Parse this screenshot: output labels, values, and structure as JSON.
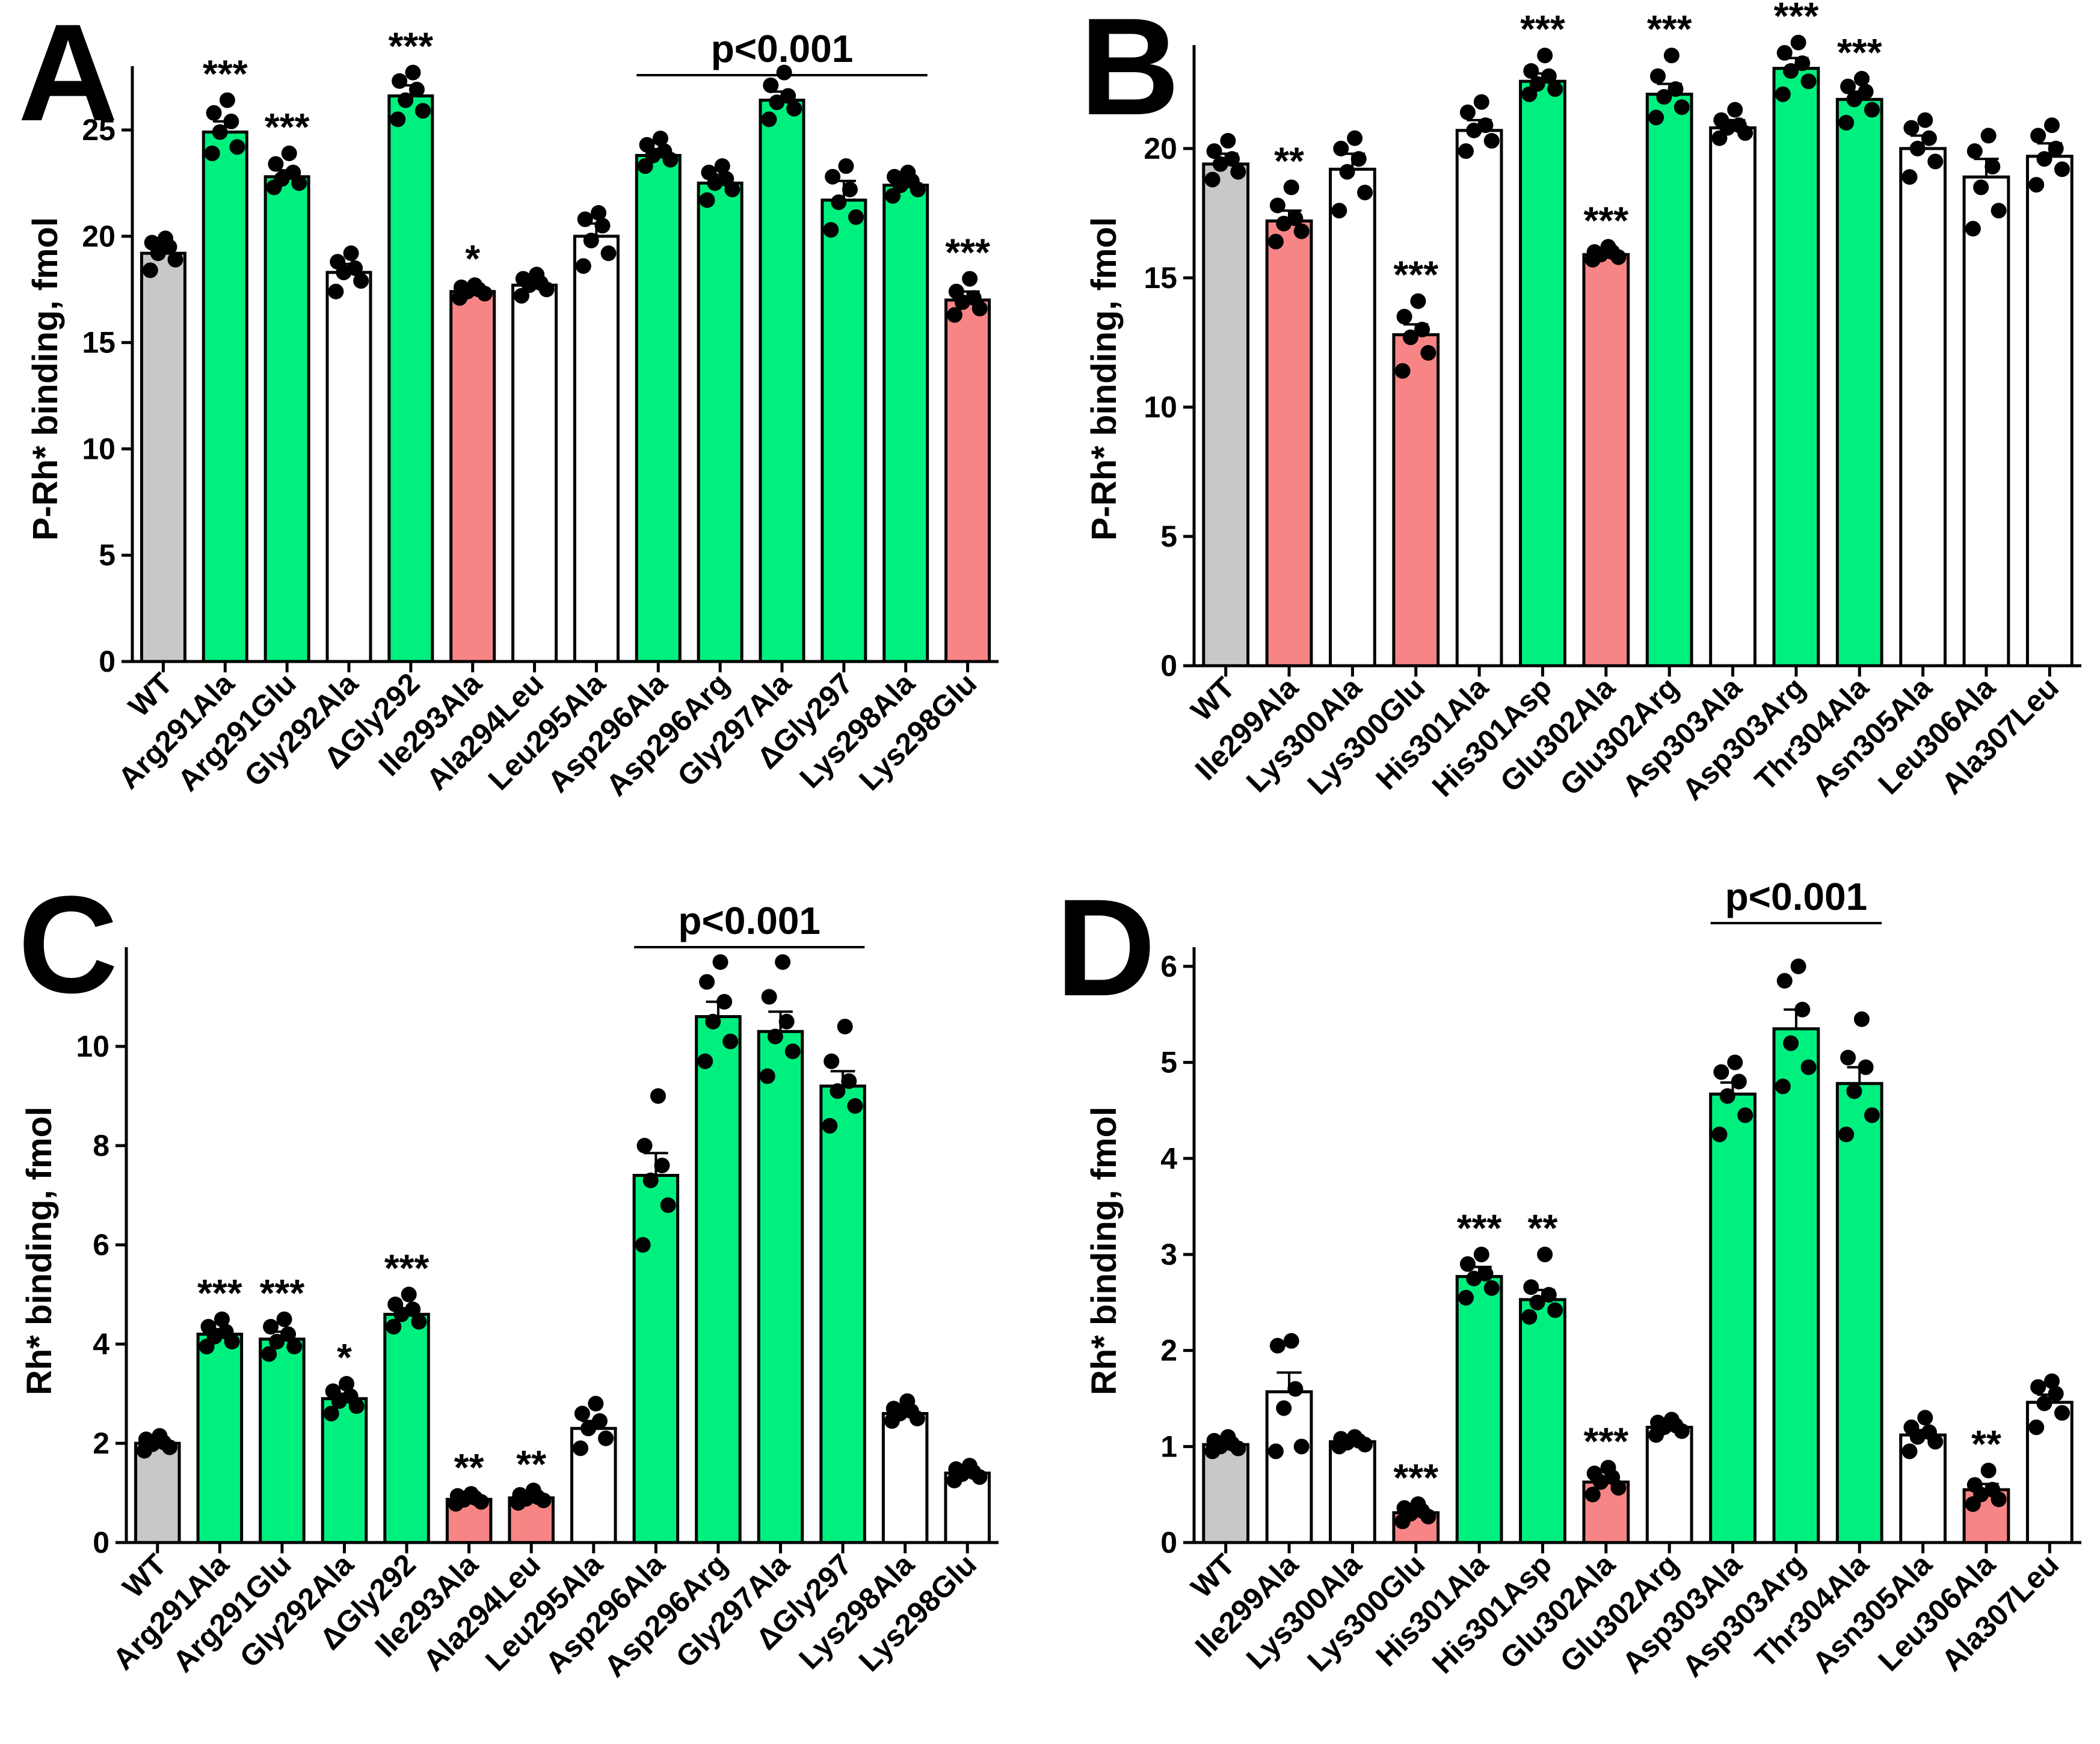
{
  "colors": {
    "wt": "#c8c8c8",
    "increase": "#00f07f",
    "decrease": "#f78585",
    "neutral": "#ffffff",
    "ink": "#000000"
  },
  "chart_data": [
    {
      "panel": "A",
      "type": "bar",
      "ylabel": "P-Rh* binding, fmol",
      "ylim": [
        0,
        28
      ],
      "yticks": [
        0,
        5,
        10,
        15,
        20,
        25
      ],
      "categories": [
        "WT",
        "Arg291Ala",
        "Arg291Glu",
        "Gly292Ala",
        "ΔGly292",
        "Ile293Ala",
        "Ala294Leu",
        "Leu295Ala",
        "Asp296Ala",
        "Asp296Arg",
        "Gly297Ala",
        "ΔGly297",
        "Lys298Ala",
        "Lys298Glu"
      ],
      "values": [
        19.2,
        24.9,
        22.8,
        18.3,
        26.6,
        17.4,
        17.7,
        20.0,
        23.8,
        22.5,
        26.4,
        21.7,
        22.4,
        17.0
      ],
      "sem": [
        0.4,
        0.5,
        0.3,
        0.4,
        0.5,
        0.2,
        0.2,
        0.6,
        0.3,
        0.4,
        0.4,
        0.9,
        0.3,
        0.4
      ],
      "groups": [
        "wt",
        "increase",
        "increase",
        "neutral",
        "increase",
        "decrease",
        "neutral",
        "neutral",
        "increase",
        "increase",
        "increase",
        "increase",
        "increase",
        "decrease"
      ],
      "points": [
        [
          18.4,
          18.9,
          19.2,
          19.5,
          19.7,
          19.9
        ],
        [
          23.9,
          24.2,
          24.9,
          25.4,
          25.8,
          26.4
        ],
        [
          22.3,
          22.5,
          22.7,
          23.0,
          23.4,
          23.9
        ],
        [
          17.4,
          17.9,
          18.3,
          18.5,
          18.8,
          19.2
        ],
        [
          25.5,
          25.9,
          26.4,
          26.9,
          27.3,
          27.7
        ],
        [
          17.1,
          17.3,
          17.4,
          17.5,
          17.6,
          17.7
        ],
        [
          17.2,
          17.5,
          17.7,
          17.8,
          18.0,
          18.2
        ],
        [
          18.6,
          19.2,
          19.8,
          20.5,
          20.8,
          21.1
        ],
        [
          23.3,
          23.6,
          23.8,
          24.0,
          24.3,
          24.6
        ],
        [
          21.7,
          22.2,
          22.5,
          22.7,
          23.0,
          23.3
        ],
        [
          25.5,
          26.0,
          26.3,
          26.6,
          27.1,
          27.7
        ],
        [
          20.3,
          20.9,
          21.6,
          22.2,
          22.8,
          23.3
        ],
        [
          21.9,
          22.2,
          22.4,
          22.6,
          22.8,
          23.0
        ],
        [
          16.3,
          16.6,
          16.9,
          17.1,
          17.4,
          18.0
        ]
      ],
      "sig_labels": [
        "",
        "***",
        "***",
        "",
        "***",
        "*",
        "",
        "",
        "",
        "",
        "",
        "",
        "",
        "***"
      ],
      "bracket": {
        "label": "p<0.001",
        "from_index": 8,
        "to_index": 12
      }
    },
    {
      "panel": "B",
      "type": "bar",
      "ylabel": "P-Rh* binding, fmol",
      "ylim": [
        0,
        24
      ],
      "yticks": [
        0,
        5,
        10,
        15,
        20
      ],
      "categories": [
        "WT",
        "Ile299Ala",
        "Lys300Ala",
        "Lys300Glu",
        "His301Ala",
        "His301Asp",
        "Glu302Ala",
        "Glu302Arg",
        "Asp303Ala",
        "Asp303Arg",
        "Thr304Ala",
        "Asn305Ala",
        "Leu306Ala",
        "Ala307Leu"
      ],
      "values": [
        19.4,
        17.2,
        19.2,
        12.8,
        20.7,
        22.6,
        15.9,
        22.1,
        20.8,
        23.1,
        21.9,
        20.0,
        18.9,
        19.7
      ],
      "sem": [
        0.4,
        0.4,
        0.6,
        0.4,
        0.4,
        0.3,
        0.1,
        0.4,
        0.3,
        0.4,
        0.3,
        0.5,
        0.7,
        0.5
      ],
      "groups": [
        "wt",
        "decrease",
        "neutral",
        "decrease",
        "neutral",
        "increase",
        "decrease",
        "increase",
        "neutral",
        "increase",
        "increase",
        "neutral",
        "neutral",
        "neutral"
      ],
      "points": [
        [
          18.8,
          19.1,
          19.4,
          19.6,
          19.9,
          20.3
        ],
        [
          16.4,
          16.8,
          17.1,
          17.3,
          17.8,
          18.5
        ],
        [
          17.6,
          18.3,
          19.1,
          19.6,
          20.0,
          20.4
        ],
        [
          11.4,
          12.1,
          12.7,
          13.0,
          13.5,
          14.1
        ],
        [
          19.9,
          20.3,
          20.7,
          20.9,
          21.4,
          21.8
        ],
        [
          22.1,
          22.3,
          22.5,
          22.8,
          23.0,
          23.6
        ],
        [
          15.7,
          15.8,
          15.9,
          16.0,
          16.0,
          16.2
        ],
        [
          21.2,
          21.6,
          22.0,
          22.3,
          22.8,
          23.6
        ],
        [
          20.4,
          20.6,
          20.8,
          20.9,
          21.1,
          21.5
        ],
        [
          22.1,
          22.6,
          23.0,
          23.3,
          23.7,
          24.1
        ],
        [
          21.0,
          21.5,
          21.9,
          22.2,
          22.4,
          22.7
        ],
        [
          18.9,
          19.5,
          20.0,
          20.4,
          20.8,
          21.1
        ],
        [
          16.9,
          17.6,
          18.5,
          19.3,
          19.9,
          20.5
        ],
        [
          18.6,
          19.2,
          19.6,
          20.0,
          20.5,
          20.9
        ]
      ],
      "sig_labels": [
        "",
        "**",
        "",
        "***",
        "",
        "***",
        "***",
        "***",
        "",
        "***",
        "***",
        "",
        "",
        ""
      ]
    },
    {
      "panel": "C",
      "type": "bar",
      "ylabel": "Rh* binding, fmol",
      "ylim": [
        0,
        12
      ],
      "yticks": [
        0,
        2,
        4,
        6,
        8,
        10
      ],
      "categories": [
        "WT",
        "Arg291Ala",
        "Arg291Glu",
        "Gly292Ala",
        "ΔGly292",
        "Ile293Ala",
        "Ala294Leu",
        "Leu295Ala",
        "Asp296Ala",
        "Asp296Arg",
        "Gly297Ala",
        "ΔGly297",
        "Lys298Ala",
        "Lys298Glu"
      ],
      "values": [
        2.0,
        4.2,
        4.1,
        2.9,
        4.6,
        0.87,
        0.9,
        2.3,
        7.4,
        10.6,
        10.3,
        9.2,
        2.6,
        1.4
      ],
      "sem": [
        0.05,
        0.1,
        0.15,
        0.1,
        0.12,
        0.04,
        0.05,
        0.15,
        0.45,
        0.3,
        0.4,
        0.3,
        0.08,
        0.06
      ],
      "groups": [
        "wt",
        "increase",
        "increase",
        "increase",
        "increase",
        "decrease",
        "decrease",
        "neutral",
        "increase",
        "increase",
        "increase",
        "increase",
        "neutral",
        "neutral"
      ],
      "points": [
        [
          1.85,
          1.92,
          1.98,
          2.02,
          2.08,
          2.15
        ],
        [
          3.95,
          4.05,
          4.15,
          4.25,
          4.35,
          4.5
        ],
        [
          3.8,
          3.95,
          4.05,
          4.2,
          4.35,
          4.5
        ],
        [
          2.6,
          2.75,
          2.85,
          2.95,
          3.05,
          3.2
        ],
        [
          4.35,
          4.45,
          4.6,
          4.7,
          4.8,
          5.0
        ],
        [
          0.78,
          0.82,
          0.86,
          0.9,
          0.94,
          0.98
        ],
        [
          0.8,
          0.85,
          0.88,
          0.92,
          0.96,
          1.05
        ],
        [
          1.9,
          2.1,
          2.3,
          2.45,
          2.6,
          2.8
        ],
        [
          6.0,
          6.8,
          7.3,
          7.6,
          8.0,
          9.0
        ],
        [
          9.7,
          10.1,
          10.5,
          10.9,
          11.3,
          11.7
        ],
        [
          9.4,
          9.9,
          10.2,
          10.5,
          11.0,
          11.7
        ],
        [
          8.4,
          8.8,
          9.1,
          9.3,
          9.7,
          10.4
        ],
        [
          2.45,
          2.5,
          2.6,
          2.65,
          2.7,
          2.85
        ],
        [
          1.25,
          1.32,
          1.38,
          1.42,
          1.48,
          1.55
        ]
      ],
      "sig_labels": [
        "",
        "***",
        "***",
        "*",
        "***",
        "**",
        "**",
        "",
        "",
        "",
        "",
        "",
        "",
        ""
      ],
      "bracket": {
        "label": "p<0.001",
        "from_index": 8,
        "to_index": 11
      }
    },
    {
      "panel": "D",
      "type": "bar",
      "ylabel": "Rh* binding, fmol",
      "ylim": [
        0,
        6.2
      ],
      "yticks": [
        0,
        1,
        2,
        3,
        4,
        5,
        6
      ],
      "categories": [
        "WT",
        "Ile299Ala",
        "Lys300Ala",
        "Lys300Glu",
        "His301Ala",
        "His301Asp",
        "Glu302Ala",
        "Glu302Arg",
        "Asp303Ala",
        "Asp303Arg",
        "Thr304Ala",
        "Asn305Ala",
        "Leu306Ala",
        "Ala307Leu"
      ],
      "values": [
        1.02,
        1.57,
        1.05,
        0.31,
        2.77,
        2.53,
        0.63,
        1.2,
        4.67,
        5.35,
        4.78,
        1.12,
        0.55,
        1.46
      ],
      "sem": [
        0.03,
        0.2,
        0.02,
        0.03,
        0.1,
        0.1,
        0.05,
        0.03,
        0.12,
        0.2,
        0.17,
        0.05,
        0.06,
        0.08
      ],
      "groups": [
        "wt",
        "neutral",
        "neutral",
        "decrease",
        "increase",
        "increase",
        "decrease",
        "neutral",
        "increase",
        "increase",
        "increase",
        "neutral",
        "decrease",
        "neutral"
      ],
      "points": [
        [
          0.95,
          0.98,
          1.0,
          1.03,
          1.06,
          1.1
        ],
        [
          0.95,
          1.0,
          1.4,
          1.6,
          2.05,
          2.1
        ],
        [
          1.0,
          1.02,
          1.04,
          1.06,
          1.08,
          1.1
        ],
        [
          0.22,
          0.27,
          0.3,
          0.33,
          0.36,
          0.4
        ],
        [
          2.55,
          2.65,
          2.75,
          2.8,
          2.9,
          3.0
        ],
        [
          2.35,
          2.42,
          2.5,
          2.58,
          2.66,
          3.0
        ],
        [
          0.5,
          0.57,
          0.63,
          0.68,
          0.72,
          0.78
        ],
        [
          1.12,
          1.16,
          1.2,
          1.22,
          1.25,
          1.28
        ],
        [
          4.25,
          4.45,
          4.65,
          4.8,
          4.9,
          5.0
        ],
        [
          4.75,
          4.95,
          5.2,
          5.55,
          5.85,
          6.0
        ],
        [
          4.25,
          4.45,
          4.7,
          4.95,
          5.05,
          5.45
        ],
        [
          0.95,
          1.05,
          1.1,
          1.15,
          1.2,
          1.3
        ],
        [
          0.4,
          0.45,
          0.5,
          0.55,
          0.6,
          0.75
        ],
        [
          1.2,
          1.35,
          1.45,
          1.55,
          1.62,
          1.68
        ]
      ],
      "sig_labels": [
        "",
        "",
        "",
        "***",
        "***",
        "**",
        "***",
        "",
        "",
        "",
        "",
        "",
        "**",
        ""
      ],
      "bracket": {
        "label": "p<0.001",
        "from_index": 8,
        "to_index": 10
      }
    }
  ]
}
